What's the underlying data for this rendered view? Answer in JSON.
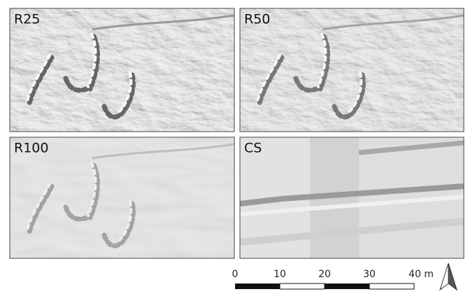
{
  "panels": [
    {
      "label": "R25"
    },
    {
      "label": "R50"
    },
    {
      "label": "R100"
    },
    {
      "label": "CS"
    }
  ],
  "scale_bar": {
    "labels": [
      "0",
      "10",
      "20",
      "30",
      "40 m"
    ]
  }
}
